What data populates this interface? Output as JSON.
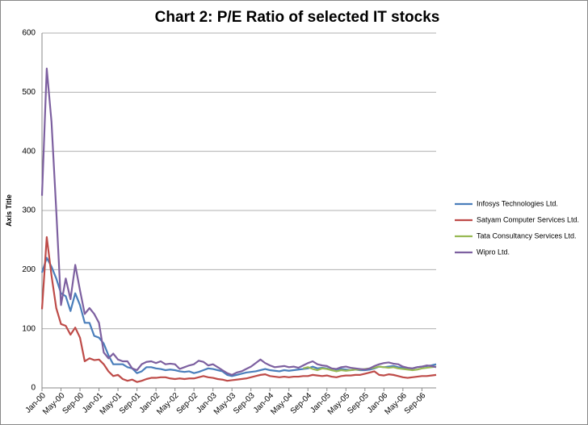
{
  "chart_data": {
    "type": "line",
    "title": "Chart 2: P/E Ratio of selected IT stocks",
    "y_label": "Axis Title",
    "categories": [
      "Jan-00",
      null,
      null,
      null,
      "May-00",
      null,
      null,
      null,
      "Sep-00",
      null,
      null,
      null,
      "Jan-01",
      null,
      null,
      null,
      "May-01",
      null,
      null,
      null,
      "Sep-01",
      null,
      null,
      null,
      "Jan-02",
      null,
      null,
      null,
      "May-02",
      null,
      null,
      null,
      "Sep-02",
      null,
      null,
      null,
      "Jan-03",
      null,
      null,
      null,
      "May-03",
      null,
      null,
      null,
      "Sep-03",
      null,
      null,
      null,
      "Jan-04",
      null,
      null,
      null,
      "May-04",
      null,
      null,
      null,
      "Sep-04",
      null,
      null,
      null,
      "Jan-05",
      null,
      null,
      null,
      "May-05",
      null,
      null,
      null,
      "Sep-05",
      null,
      null,
      null,
      "Jan-06",
      null,
      null,
      null,
      "May-06",
      null,
      null,
      null,
      "Sep-06",
      null,
      null,
      null
    ],
    "series": [
      {
        "name": "Infosys Technologies Ltd.",
        "color": "#4a7ebb",
        "values": [
          195,
          220,
          205,
          185,
          160,
          155,
          130,
          160,
          140,
          110,
          110,
          88,
          85,
          75,
          55,
          40,
          40,
          40,
          35,
          33,
          25,
          28,
          35,
          35,
          33,
          32,
          30,
          31,
          30,
          28,
          27,
          28,
          25,
          27,
          30,
          33,
          32,
          30,
          28,
          22,
          20,
          22,
          24,
          26,
          27,
          28,
          30,
          32,
          30,
          29,
          28,
          30,
          29,
          30,
          31,
          32,
          33,
          36,
          33,
          34,
          33,
          30,
          29,
          32,
          31,
          30,
          31,
          30,
          30,
          31,
          33,
          36,
          35,
          36,
          37,
          35,
          34,
          33,
          33,
          35,
          36,
          37,
          38,
          40
        ]
      },
      {
        "name": "Satyam Computer Services Ltd.",
        "color": "#be4b48",
        "values": [
          133,
          255,
          190,
          135,
          108,
          105,
          90,
          102,
          85,
          45,
          50,
          47,
          48,
          40,
          28,
          20,
          22,
          15,
          12,
          14,
          10,
          12,
          15,
          17,
          17,
          18,
          18,
          16,
          15,
          16,
          15,
          16,
          16,
          18,
          20,
          18,
          17,
          15,
          14,
          12,
          13,
          14,
          15,
          16,
          18,
          20,
          22,
          23,
          20,
          19,
          18,
          19,
          18,
          19,
          19,
          20,
          20,
          22,
          21,
          20,
          21,
          19,
          18,
          20,
          21,
          21,
          22,
          22,
          24,
          26,
          28,
          22,
          21,
          23,
          22,
          20,
          18,
          17,
          18,
          19,
          20,
          20,
          21,
          22
        ]
      },
      {
        "name": "Tata Consultancy Services Ltd.",
        "color": "#98b954",
        "values": [
          null,
          null,
          null,
          null,
          null,
          null,
          null,
          null,
          null,
          null,
          null,
          null,
          null,
          null,
          null,
          null,
          null,
          null,
          null,
          null,
          null,
          null,
          null,
          null,
          null,
          null,
          null,
          null,
          null,
          null,
          null,
          null,
          null,
          null,
          null,
          null,
          null,
          null,
          null,
          null,
          null,
          null,
          null,
          null,
          null,
          null,
          null,
          null,
          null,
          null,
          null,
          null,
          null,
          null,
          null,
          33,
          35,
          32,
          30,
          33,
          32,
          30,
          28,
          30,
          29,
          30,
          31,
          31,
          32,
          33,
          34,
          36,
          35,
          34,
          35,
          33,
          32,
          31,
          30,
          31,
          33,
          34,
          35,
          36
        ]
      },
      {
        "name": "Wipro Ltd.",
        "color": "#7d60a0",
        "values": [
          325,
          540,
          450,
          300,
          140,
          185,
          150,
          208,
          165,
          125,
          135,
          125,
          110,
          60,
          50,
          58,
          48,
          45,
          45,
          33,
          30,
          40,
          44,
          45,
          42,
          45,
          40,
          41,
          40,
          32,
          35,
          38,
          40,
          46,
          44,
          38,
          40,
          35,
          30,
          25,
          22,
          26,
          28,
          32,
          36,
          42,
          48,
          42,
          38,
          35,
          36,
          37,
          35,
          36,
          34,
          38,
          42,
          45,
          40,
          38,
          37,
          33,
          32,
          35,
          36,
          34,
          33,
          32,
          31,
          33,
          37,
          40,
          42,
          43,
          41,
          40,
          36,
          34,
          33,
          35,
          36,
          38,
          37,
          35
        ]
      }
    ],
    "ylim": [
      0,
      600
    ],
    "yticks": [
      0,
      100,
      200,
      300,
      400,
      500,
      600
    ],
    "grid": true,
    "legend": "right"
  }
}
